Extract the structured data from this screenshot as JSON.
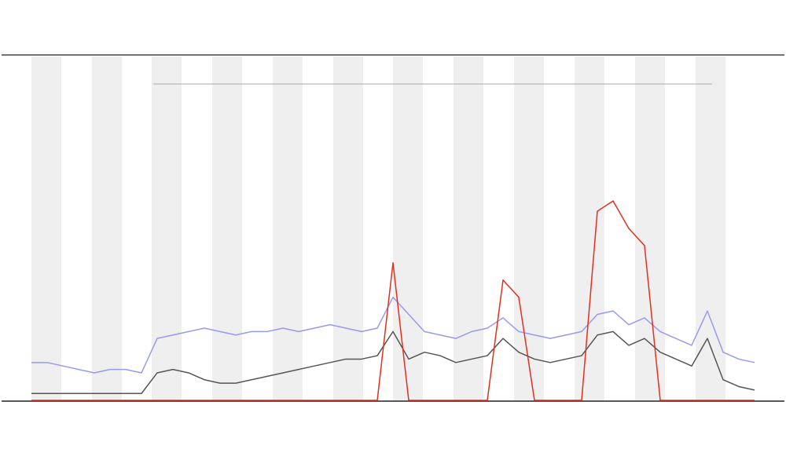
{
  "chart_data": {
    "type": "line",
    "x": [
      0,
      20,
      40,
      60,
      80,
      100,
      120,
      140,
      160,
      180,
      200,
      220,
      240,
      260,
      280,
      300,
      320,
      340,
      360,
      380,
      400,
      420,
      440,
      460,
      480,
      500,
      520,
      540,
      560,
      580,
      600,
      620,
      640,
      660,
      680,
      700,
      720,
      740,
      760,
      780,
      800,
      820,
      840,
      860,
      880,
      900,
      920
    ],
    "xlim": [
      0,
      922
    ],
    "ylim": [
      0,
      100
    ],
    "series": [
      {
        "color": "#9999ee",
        "values": [
          11,
          11,
          10,
          9,
          8,
          9,
          9,
          8,
          18,
          19,
          20,
          21,
          20,
          19,
          20,
          20,
          21,
          20,
          21,
          22,
          21,
          20,
          21,
          30,
          25,
          20,
          19,
          18,
          20,
          21,
          24,
          20,
          19,
          18,
          19,
          20,
          25,
          26,
          22,
          24,
          20,
          18,
          16,
          26,
          14,
          12,
          11
        ]
      },
      {
        "color": "#555555",
        "values": [
          2,
          2,
          2,
          2,
          2,
          2,
          2,
          2,
          8,
          9,
          8,
          6,
          5,
          5,
          6,
          7,
          8,
          9,
          10,
          11,
          12,
          12,
          13,
          20,
          12,
          14,
          13,
          11,
          12,
          13,
          18,
          14,
          12,
          11,
          12,
          13,
          19,
          20,
          16,
          18,
          14,
          12,
          10,
          18,
          6,
          4,
          3
        ]
      },
      {
        "color": "#e03020",
        "values": [
          0,
          0,
          0,
          0,
          0,
          0,
          0,
          0,
          0,
          0,
          0,
          0,
          0,
          0,
          0,
          0,
          0,
          0,
          0,
          0,
          0,
          0,
          0,
          40,
          0,
          0,
          0,
          0,
          0,
          0,
          35,
          30,
          0,
          0,
          0,
          0,
          55,
          58,
          50,
          45,
          0,
          0,
          0,
          0,
          0,
          0,
          0
        ]
      }
    ]
  }
}
